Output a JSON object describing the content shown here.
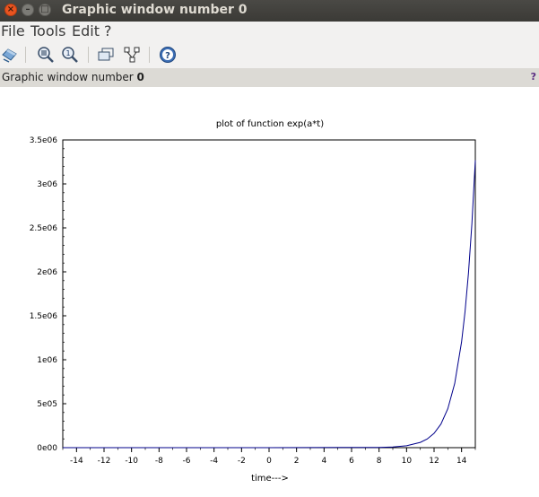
{
  "window": {
    "title": "Graphic window number 0",
    "controls": [
      "×",
      "–",
      "□"
    ]
  },
  "menu": {
    "file": "File",
    "tools": "Tools",
    "edit": "Edit",
    "help": "?"
  },
  "toolbar": {
    "icons": [
      "rotate-icon",
      "zoom-icon",
      "unzoom-icon",
      "datatip-icon",
      "datatip-edit-icon",
      "help-icon"
    ]
  },
  "info_bar": {
    "text_prefix": "Graphic window number ",
    "text_number": "0",
    "help": "?"
  },
  "chart_data": {
    "type": "line",
    "title": "plot of function exp(a*t)",
    "xlabel": "time--->",
    "ylabel": "",
    "xlim": [
      -15,
      15
    ],
    "ylim": [
      0,
      3500000
    ],
    "xticks": [
      -14,
      -12,
      -10,
      -8,
      -6,
      -4,
      -2,
      0,
      2,
      4,
      6,
      8,
      10,
      12,
      14
    ],
    "xtick_labels": [
      "-14",
      "-12",
      "-10",
      "-8",
      "-6",
      "-4",
      "-2",
      "0",
      "2",
      "4",
      "6",
      "8",
      "10",
      "12",
      "14"
    ],
    "yticks": [
      0,
      500000,
      1000000,
      1500000,
      2000000,
      2500000,
      3000000,
      3500000
    ],
    "ytick_labels": [
      "0e00",
      "5e05",
      "1e06",
      "1.5e06",
      "2e06",
      "2.5e06",
      "3e06",
      "3.5e06"
    ],
    "series": [
      {
        "color": "#00008b",
        "x": [
          -15,
          0,
          8,
          9,
          10,
          11,
          11.5,
          12,
          12.5,
          13,
          13.5,
          14,
          14.25,
          14.5,
          14.75,
          15
        ],
        "y": [
          0,
          1,
          2981,
          8103,
          22026,
          59874,
          98715,
          162755,
          268337,
          442413,
          729416,
          1202604,
          1544174,
          1982759,
          2545913,
          3269017
        ]
      }
    ],
    "grid": false,
    "legend": "none"
  },
  "colors": {
    "titlebar": "#3b3a36",
    "close_button": "#e95420",
    "line": "#00008b",
    "infobar": "#dcdad5"
  }
}
